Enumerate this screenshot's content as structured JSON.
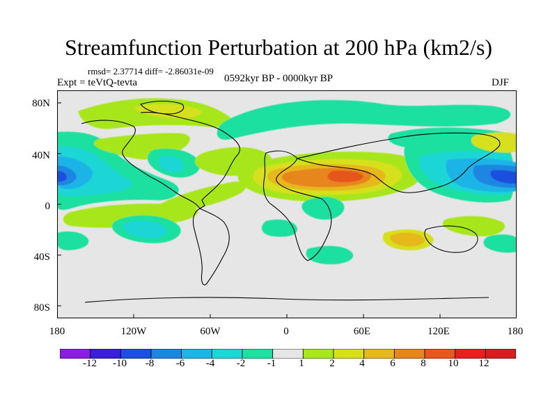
{
  "title": "Streamfunction Perturbation at 200 hPa (km2/s)",
  "stats": "rmsd= 2.37714 diff= -2.86031e-09",
  "experiment": "Expt = teVtQ-tevta",
  "period": "0592kyr BP - 0000kyr BP",
  "season": "DJF",
  "y_tick_labels": [
    "80N",
    "40N",
    "0",
    "40S",
    "80S"
  ],
  "x_tick_labels": [
    "180",
    "120W",
    "60W",
    "0",
    "60E",
    "120E",
    "180"
  ],
  "colorbar": {
    "labels": [
      "-12",
      "-10",
      "-8",
      "-6",
      "-4",
      "-2",
      "-1",
      "1",
      "2",
      "4",
      "6",
      "8",
      "10",
      "12"
    ],
    "colors": [
      "#8a1fe0",
      "#3a1fd6",
      "#1f4fe0",
      "#1f86e0",
      "#1fb4e6",
      "#1fd6d6",
      "#1fe0a0",
      "#e6e6e6",
      "#a8e61f",
      "#d6e01f",
      "#e6b81f",
      "#e6861f",
      "#e6561f",
      "#e61f1f",
      "#d61f1f"
    ]
  },
  "map": {
    "projection": "cylindrical equidistant",
    "background_color": "#e6e6e6",
    "coastline_color": "#000000"
  }
}
